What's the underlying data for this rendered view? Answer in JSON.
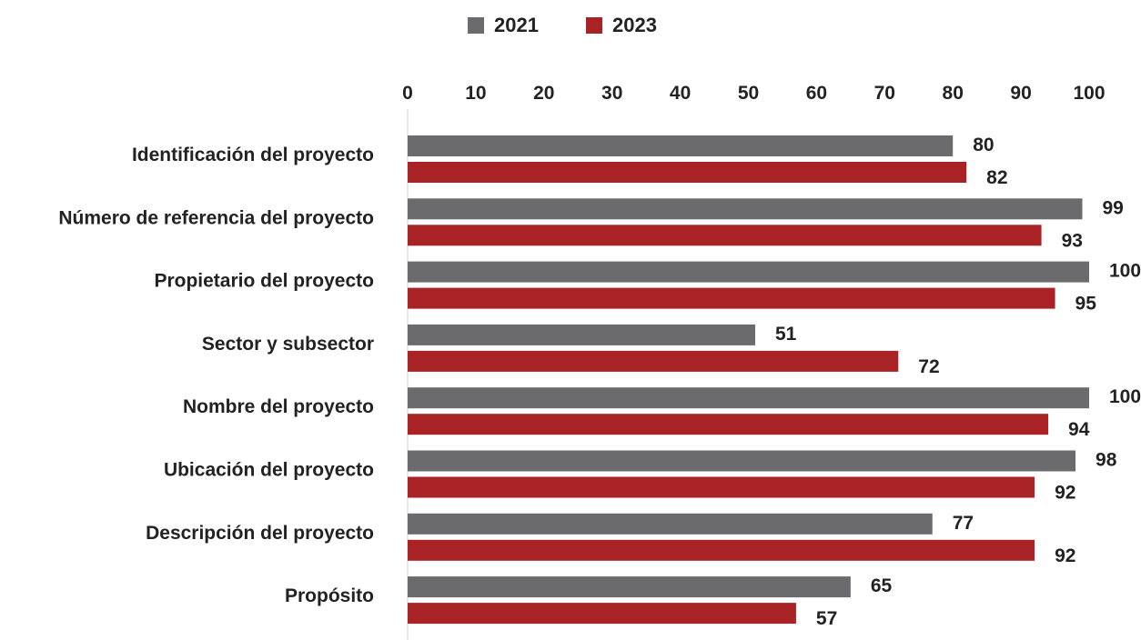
{
  "chart_data": {
    "type": "bar",
    "orientation": "horizontal",
    "categories": [
      "Identificación del proyecto",
      "Número de referencia del proyecto",
      "Propietario del proyecto",
      "Sector y subsector",
      "Nombre del proyecto",
      "Ubicación del proyecto",
      "Descripción del proyecto",
      "Propósito"
    ],
    "series": [
      {
        "name": "2021",
        "color": "#6b6b6d",
        "values": [
          80,
          99,
          100,
          51,
          100,
          98,
          77,
          65
        ]
      },
      {
        "name": "2023",
        "color": "#a92326",
        "values": [
          82,
          93,
          95,
          72,
          94,
          92,
          92,
          57
        ]
      }
    ],
    "xlim": [
      0,
      100
    ],
    "xticks": [
      0,
      10,
      20,
      30,
      40,
      50,
      60,
      70,
      80,
      90,
      100
    ],
    "axis_position": "top",
    "grid": false,
    "legend_position": "top",
    "data_labels": true
  }
}
